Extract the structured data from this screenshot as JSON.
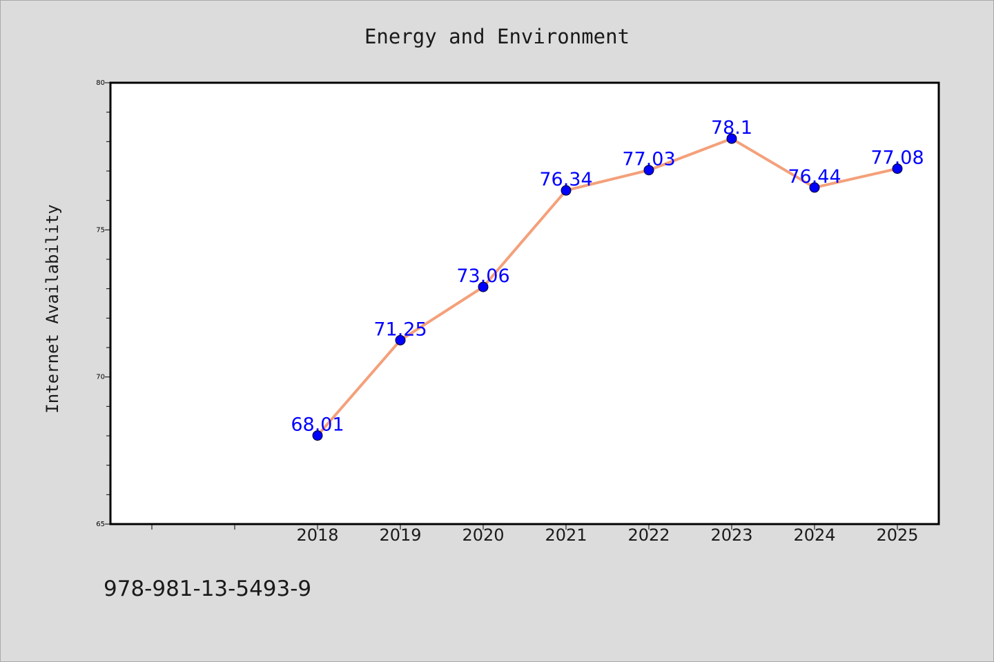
{
  "chart_data": {
    "type": "line",
    "title": "Energy and Environment",
    "xlabel": "",
    "ylabel": "Internet Availability",
    "categories": [
      "2018",
      "2019",
      "2020",
      "2021",
      "2022",
      "2023",
      "2024",
      "2025"
    ],
    "series": [
      {
        "values": [
          68.01,
          71.25,
          73.06,
          76.34,
          77.03,
          78.1,
          76.44,
          77.08
        ],
        "data_labels": [
          "68.01",
          "71.25",
          "73.06",
          "76.34",
          "77.03",
          "78.1",
          "76.44",
          "77.08"
        ],
        "line_color": "#f4a07a",
        "marker_color": "#0000ff"
      }
    ],
    "x_range_categories": 12,
    "ylim": [
      65,
      80
    ],
    "y_ticks": [
      "65",
      "70",
      "75",
      "80"
    ],
    "grid": false,
    "legend": "none"
  },
  "footer_text": "978-981-13-5493-9",
  "colors": {
    "background": "#dcdcdc",
    "plot_background": "#ffffff",
    "data_label": "#0000ff",
    "text": "#1a1a1a"
  }
}
